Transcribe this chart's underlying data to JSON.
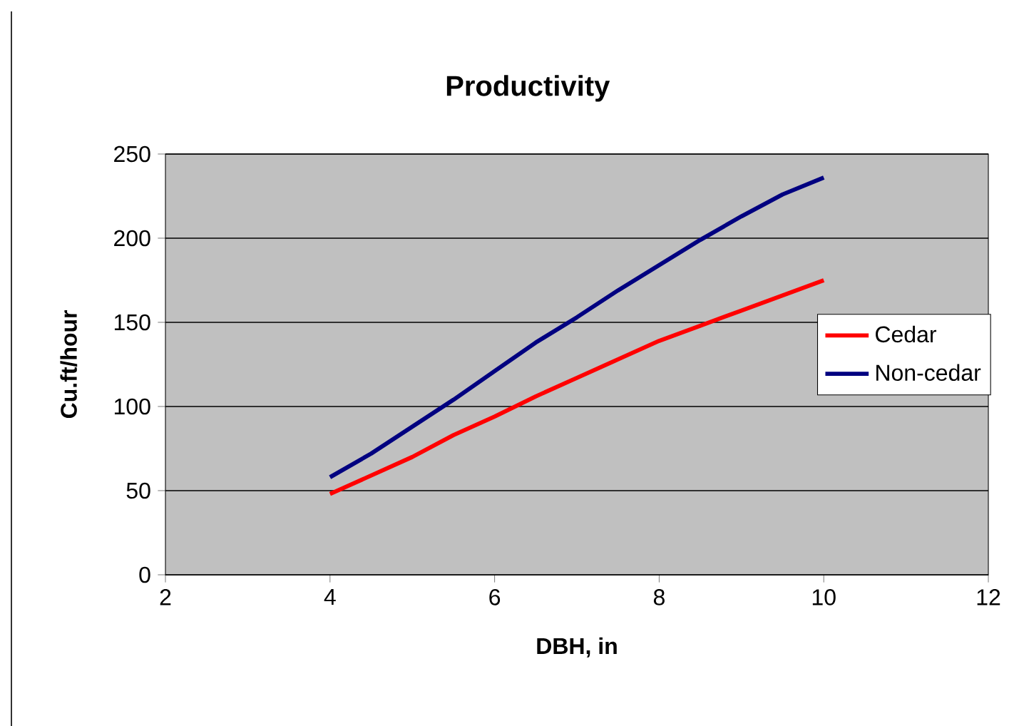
{
  "chart_data": {
    "type": "line",
    "title": "Productivity",
    "xlabel": "DBH, in",
    "ylabel": "Cu.ft/hour",
    "x": [
      4,
      4.5,
      5,
      5.5,
      6,
      6.5,
      7,
      7.5,
      8,
      8.5,
      9,
      9.5,
      10
    ],
    "series": [
      {
        "name": "Cedar",
        "color": "#ff0000",
        "values": [
          48,
          59,
          70,
          83,
          94,
          106,
          117,
          128,
          139,
          148,
          157,
          166,
          175
        ]
      },
      {
        "name": "Non-cedar",
        "color": "#000080",
        "values": [
          58,
          72,
          88,
          104,
          121,
          138,
          153,
          169,
          184,
          199,
          213,
          226,
          236
        ]
      }
    ],
    "xlim": [
      2,
      12
    ],
    "xticks": [
      2,
      4,
      6,
      8,
      10,
      12
    ],
    "ylim": [
      0,
      250
    ],
    "yticks": [
      0,
      50,
      100,
      150,
      200,
      250
    ],
    "grid": "y",
    "legend": "right",
    "marker": "none",
    "line_style": "solid"
  }
}
